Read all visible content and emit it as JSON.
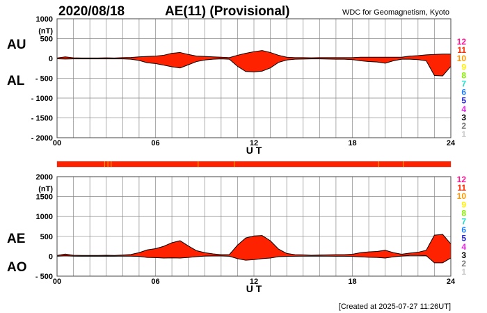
{
  "header": {
    "date": "2020/08/18",
    "title": "AE(11) (Provisional)",
    "source": "WDC for Geomagnetism, Kyoto"
  },
  "footer": {
    "created": "[Created at 2025-07-27 11:26UT]"
  },
  "legend": {
    "items": [
      {
        "label": "12",
        "color": "#ff1493"
      },
      {
        "label": "11",
        "color": "#ff2a00"
      },
      {
        "label": "10",
        "color": "#ff9900"
      },
      {
        "label": "9",
        "color": "#ffee00"
      },
      {
        "label": "8",
        "color": "#88ee00"
      },
      {
        "label": "7",
        "color": "#22ddcc"
      },
      {
        "label": "6",
        "color": "#1e7fff"
      },
      {
        "label": "5",
        "color": "#2222dd"
      },
      {
        "label": "4",
        "color": "#ee22ee"
      },
      {
        "label": "3",
        "color": "#000000"
      },
      {
        "label": "2",
        "color": "#777777"
      },
      {
        "label": "1",
        "color": "#cccccc"
      }
    ]
  },
  "colors": {
    "fill": "#ff2200",
    "bar_marks": "#ffaa00"
  },
  "station_bar": {
    "marks_hours": [
      2.9,
      3.1,
      3.3,
      8.6,
      10.8,
      19.6,
      21.1
    ]
  },
  "chart_data": [
    {
      "type": "area",
      "title": "AU / AL",
      "series_labels": [
        "AU",
        "AL"
      ],
      "ylabel_unit": "(nT)",
      "xlabel": "U T",
      "ylim": [
        -2000,
        1000
      ],
      "yticks": [
        "1000",
        "500",
        "0",
        "- 500",
        "- 1000",
        "- 1500",
        "- 2000"
      ],
      "ytick_values": [
        1000,
        500,
        0,
        -500,
        -1000,
        -1500,
        -2000
      ],
      "xticks": [
        "00",
        "06",
        "12",
        "18",
        "24"
      ],
      "xlim": [
        0,
        24
      ],
      "grid": true,
      "x": [
        0,
        0.5,
        1,
        1.5,
        2,
        2.5,
        3,
        3.5,
        4,
        4.5,
        5,
        5.5,
        6,
        6.5,
        7,
        7.5,
        8,
        8.5,
        9,
        9.5,
        10,
        10.5,
        11,
        11.5,
        12,
        12.5,
        13,
        13.5,
        14,
        14.5,
        15,
        15.5,
        16,
        16.5,
        17,
        17.5,
        18,
        18.5,
        19,
        19.5,
        20,
        20.5,
        21,
        21.5,
        22,
        22.5,
        23,
        23.5,
        24
      ],
      "AU": [
        10,
        40,
        15,
        10,
        10,
        10,
        15,
        10,
        20,
        25,
        40,
        50,
        60,
        80,
        130,
        150,
        100,
        60,
        50,
        40,
        30,
        20,
        80,
        130,
        170,
        200,
        150,
        80,
        30,
        20,
        20,
        15,
        20,
        20,
        20,
        20,
        20,
        30,
        30,
        30,
        30,
        30,
        30,
        60,
        70,
        90,
        100,
        110,
        110
      ],
      "AL": [
        -10,
        -15,
        -10,
        -10,
        -10,
        -10,
        -10,
        -10,
        -10,
        -20,
        -50,
        -110,
        -130,
        -170,
        -210,
        -240,
        -160,
        -80,
        -40,
        -20,
        -10,
        -20,
        -200,
        -330,
        -340,
        -320,
        -240,
        -100,
        -40,
        -20,
        -15,
        -10,
        -10,
        -15,
        -20,
        -20,
        -30,
        -60,
        -80,
        -90,
        -120,
        -60,
        -20,
        -20,
        -30,
        -60,
        -430,
        -440,
        -200
      ]
    },
    {
      "type": "area",
      "title": "AE / AO",
      "series_labels": [
        "AE",
        "AO"
      ],
      "ylabel_unit": "(nT)",
      "xlabel": "U T",
      "ylim": [
        -500,
        2000
      ],
      "yticks": [
        "2000",
        "1500",
        "1000",
        "500",
        "0",
        "- 500"
      ],
      "ytick_values": [
        2000,
        1500,
        1000,
        500,
        0,
        -500
      ],
      "xticks": [
        "00",
        "06",
        "12",
        "18",
        "24"
      ],
      "xlim": [
        0,
        24
      ],
      "grid": true,
      "derived": "AE = AU - AL, AO = (AU + AL) / 2"
    }
  ]
}
